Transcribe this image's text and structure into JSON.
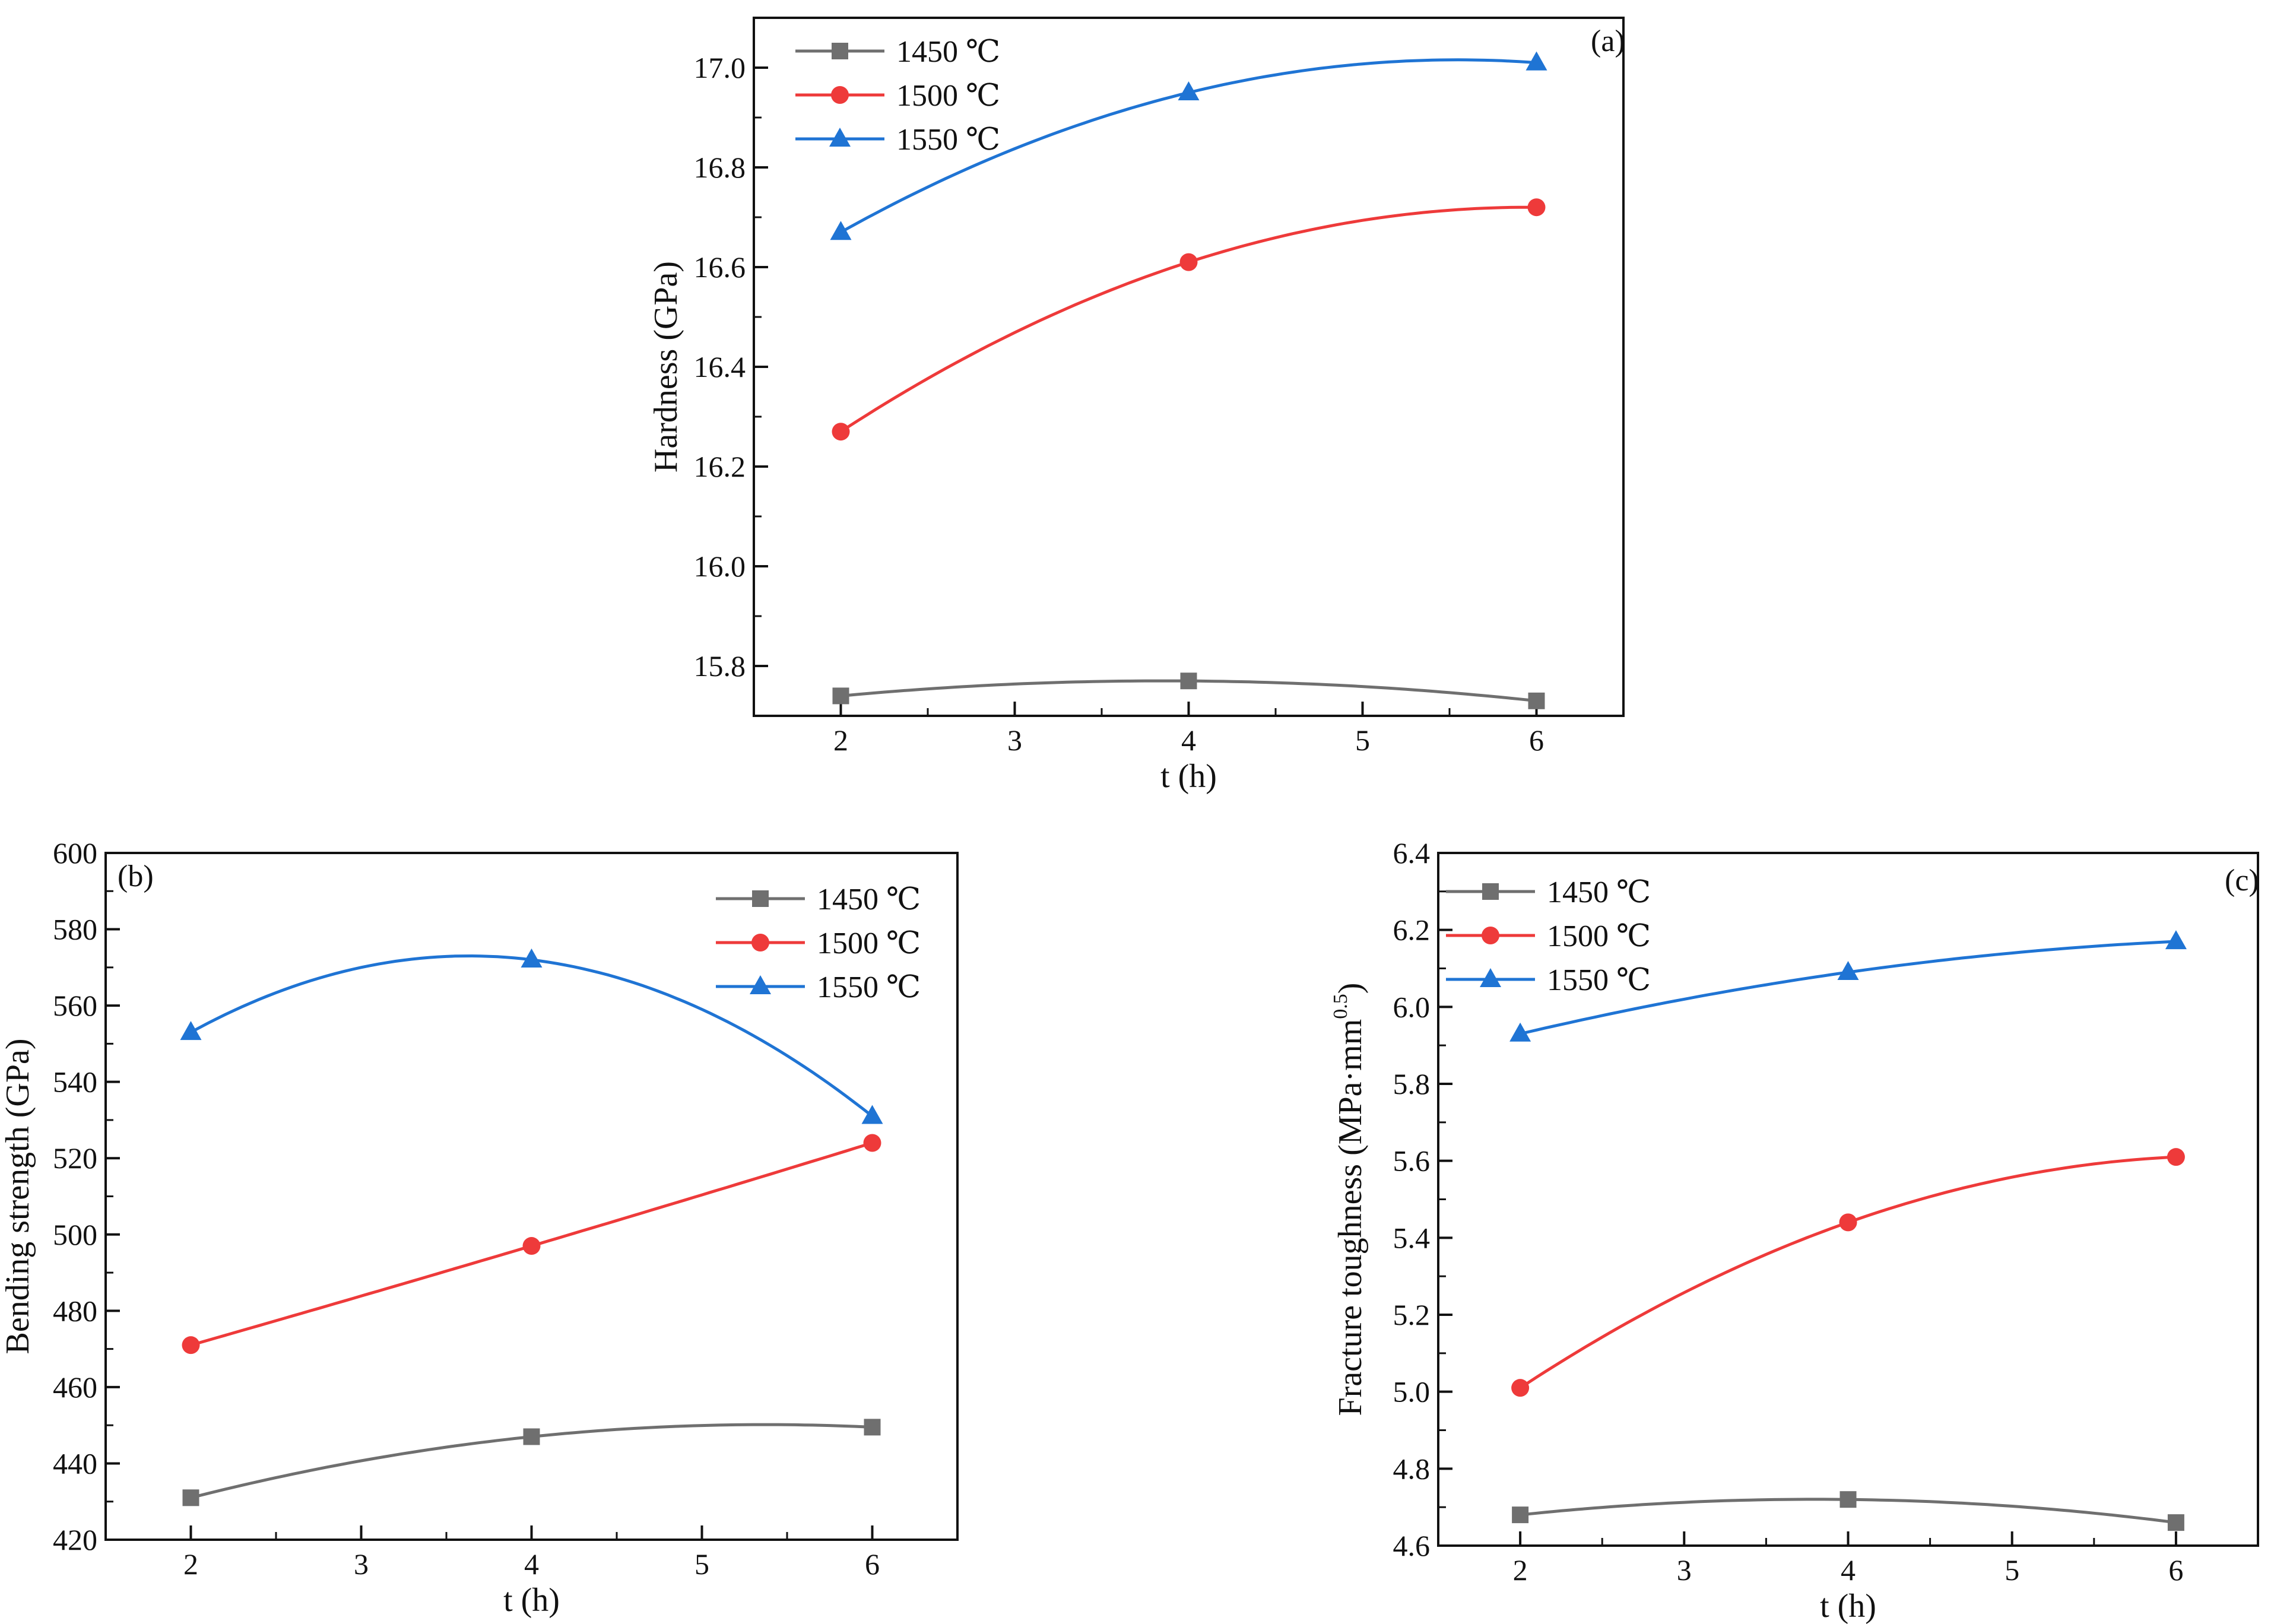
{
  "colors": {
    "series_1450": "#6f6f6f",
    "series_1500": "#ee3a3a",
    "series_1550": "#1f74d4"
  },
  "chart_data": [
    {
      "type": "line",
      "panel": "(a)",
      "xlabel": "t (h)",
      "ylabel": "Hardness (GPa)",
      "xlim": [
        1.5,
        6.5
      ],
      "ylim": [
        15.7,
        17.1
      ],
      "xticks": [
        "2",
        "3",
        "4",
        "5",
        "6"
      ],
      "yticks": [
        "15.8",
        "16.0",
        "16.2",
        "16.4",
        "16.6",
        "16.8",
        "17.0"
      ],
      "grid": false,
      "legend_position": "top-left",
      "x": [
        2,
        4,
        6
      ],
      "series": [
        {
          "name": "1450 ℃",
          "marker": "square",
          "values": [
            15.74,
            15.77,
            15.73
          ]
        },
        {
          "name": "1500 ℃",
          "marker": "circle",
          "values": [
            16.27,
            16.61,
            16.72
          ]
        },
        {
          "name": "1550 ℃",
          "marker": "triangle",
          "values": [
            16.67,
            16.95,
            17.01
          ]
        }
      ]
    },
    {
      "type": "line",
      "panel": "(b)",
      "xlabel": "t (h)",
      "ylabel": "Bending strength (GPa)",
      "xlim": [
        1.5,
        6.5
      ],
      "ylim": [
        420,
        600
      ],
      "xticks": [
        "2",
        "3",
        "4",
        "5",
        "6"
      ],
      "yticks": [
        "420",
        "440",
        "460",
        "480",
        "500",
        "520",
        "540",
        "560",
        "580",
        "600"
      ],
      "grid": false,
      "legend_position": "top-right",
      "x": [
        2,
        4,
        6
      ],
      "series": [
        {
          "name": "1450 ℃",
          "marker": "square",
          "values": [
            431,
            447,
            449.5
          ]
        },
        {
          "name": "1500 ℃",
          "marker": "circle",
          "values": [
            471,
            497,
            524
          ]
        },
        {
          "name": "1550 ℃",
          "marker": "triangle",
          "values": [
            553,
            572,
            531
          ]
        }
      ]
    },
    {
      "type": "line",
      "panel": "(c)",
      "xlabel": "t (h)",
      "ylabel": "Fracture toughness (MPa·mm",
      "ylabel_superscript": "0.5",
      "ylabel_suffix": ")",
      "xlim": [
        1.5,
        6.5
      ],
      "ylim": [
        4.6,
        6.4
      ],
      "xticks": [
        "2",
        "3",
        "4",
        "5",
        "6"
      ],
      "yticks": [
        "4.6",
        "4.8",
        "5.0",
        "5.2",
        "5.4",
        "5.6",
        "5.8",
        "6.0",
        "6.2",
        "6.4"
      ],
      "grid": false,
      "legend_position": "top-left",
      "x": [
        2,
        4,
        6
      ],
      "series": [
        {
          "name": "1450 ℃",
          "marker": "square",
          "values": [
            4.68,
            4.72,
            4.66
          ]
        },
        {
          "name": "1500 ℃",
          "marker": "circle",
          "values": [
            5.01,
            5.44,
            5.61
          ]
        },
        {
          "name": "1550 ℃",
          "marker": "triangle",
          "values": [
            5.93,
            6.09,
            6.17
          ]
        }
      ]
    }
  ]
}
